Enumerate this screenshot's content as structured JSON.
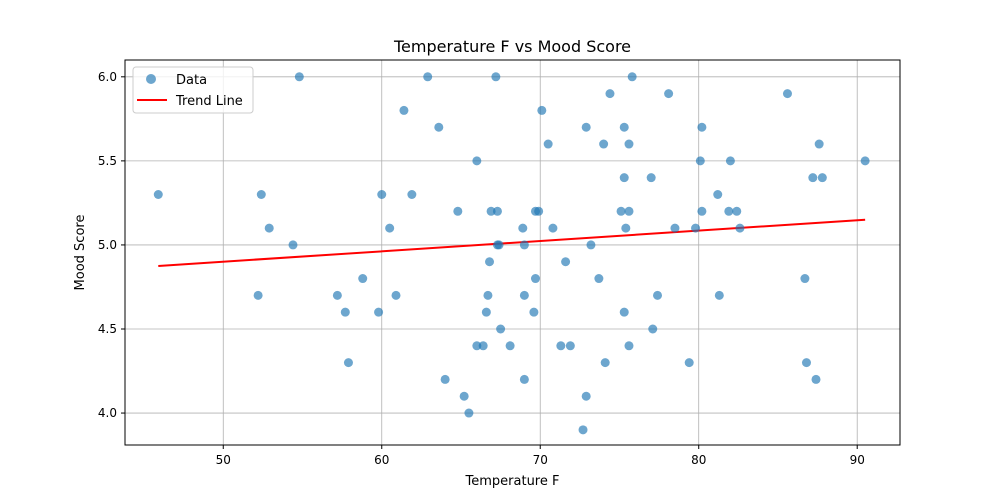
{
  "chart_data": {
    "type": "scatter",
    "title": "Temperature F vs Mood Score",
    "xlabel": "Temperature F",
    "ylabel": "Mood Score",
    "xlim": [
      43.8,
      92.7
    ],
    "ylim": [
      3.81,
      6.1
    ],
    "xticks": [
      50,
      60,
      70,
      80,
      90
    ],
    "yticks": [
      4.0,
      4.5,
      5.0,
      5.5,
      6.0
    ],
    "xtick_labels": [
      "50",
      "60",
      "70",
      "80",
      "90"
    ],
    "ytick_labels": [
      "4.0",
      "4.5",
      "5.0",
      "5.5",
      "6.0"
    ],
    "grid": true,
    "legend": {
      "placement": "top-left",
      "entries": [
        "Data",
        "Trend Line"
      ]
    },
    "colors": {
      "data": "#1f77b4",
      "trend": "#ff0000"
    },
    "series": [
      {
        "name": "Data",
        "points": [
          [
            45.9,
            5.3
          ],
          [
            52.2,
            4.7
          ],
          [
            52.4,
            5.3
          ],
          [
            52.9,
            5.1
          ],
          [
            54.4,
            5.0
          ],
          [
            54.8,
            6.0
          ],
          [
            57.2,
            4.7
          ],
          [
            57.7,
            4.6
          ],
          [
            57.9,
            4.3
          ],
          [
            58.8,
            4.8
          ],
          [
            59.8,
            4.6
          ],
          [
            60.0,
            5.3
          ],
          [
            60.5,
            5.1
          ],
          [
            60.9,
            4.7
          ],
          [
            61.4,
            5.8
          ],
          [
            61.9,
            5.3
          ],
          [
            62.9,
            6.0
          ],
          [
            63.6,
            5.7
          ],
          [
            64.0,
            4.2
          ],
          [
            64.8,
            5.2
          ],
          [
            65.2,
            4.1
          ],
          [
            65.5,
            4.0
          ],
          [
            66.0,
            5.5
          ],
          [
            66.0,
            4.4
          ],
          [
            66.4,
            4.4
          ],
          [
            66.6,
            4.6
          ],
          [
            66.7,
            4.7
          ],
          [
            66.8,
            4.9
          ],
          [
            66.9,
            5.2
          ],
          [
            67.2,
            6.0
          ],
          [
            67.3,
            5.2
          ],
          [
            67.3,
            5.0
          ],
          [
            67.4,
            5.0
          ],
          [
            67.5,
            4.5
          ],
          [
            68.1,
            4.4
          ],
          [
            68.9,
            5.1
          ],
          [
            69.0,
            4.2
          ],
          [
            69.0,
            5.0
          ],
          [
            69.0,
            4.7
          ],
          [
            69.6,
            4.6
          ],
          [
            69.7,
            4.8
          ],
          [
            69.7,
            5.2
          ],
          [
            69.9,
            5.2
          ],
          [
            70.1,
            5.8
          ],
          [
            70.5,
            5.6
          ],
          [
            70.8,
            5.1
          ],
          [
            71.3,
            4.4
          ],
          [
            71.6,
            4.9
          ],
          [
            71.9,
            4.4
          ],
          [
            72.7,
            3.9
          ],
          [
            72.9,
            4.1
          ],
          [
            72.9,
            5.7
          ],
          [
            73.2,
            5.0
          ],
          [
            73.7,
            4.8
          ],
          [
            74.0,
            5.6
          ],
          [
            74.1,
            4.3
          ],
          [
            74.4,
            5.9
          ],
          [
            75.1,
            5.2
          ],
          [
            75.3,
            5.4
          ],
          [
            75.3,
            5.7
          ],
          [
            75.3,
            4.6
          ],
          [
            75.4,
            5.1
          ],
          [
            75.6,
            5.6
          ],
          [
            75.6,
            5.2
          ],
          [
            75.6,
            4.4
          ],
          [
            75.8,
            6.0
          ],
          [
            77.0,
            5.4
          ],
          [
            77.1,
            4.5
          ],
          [
            77.4,
            4.7
          ],
          [
            78.1,
            5.9
          ],
          [
            78.5,
            5.1
          ],
          [
            79.4,
            4.3
          ],
          [
            79.8,
            5.1
          ],
          [
            80.1,
            5.5
          ],
          [
            80.2,
            5.2
          ],
          [
            80.2,
            5.7
          ],
          [
            81.2,
            5.3
          ],
          [
            81.3,
            4.7
          ],
          [
            81.9,
            5.2
          ],
          [
            82.0,
            5.5
          ],
          [
            82.4,
            5.2
          ],
          [
            82.6,
            5.1
          ],
          [
            85.6,
            5.9
          ],
          [
            86.7,
            4.8
          ],
          [
            86.8,
            4.3
          ],
          [
            87.2,
            5.4
          ],
          [
            87.4,
            4.2
          ],
          [
            87.6,
            5.6
          ],
          [
            87.8,
            5.4
          ],
          [
            90.5,
            5.5
          ]
        ]
      },
      {
        "name": "Trend Line",
        "line": [
          [
            45.9,
            4.875
          ],
          [
            90.5,
            5.15
          ]
        ]
      }
    ]
  }
}
